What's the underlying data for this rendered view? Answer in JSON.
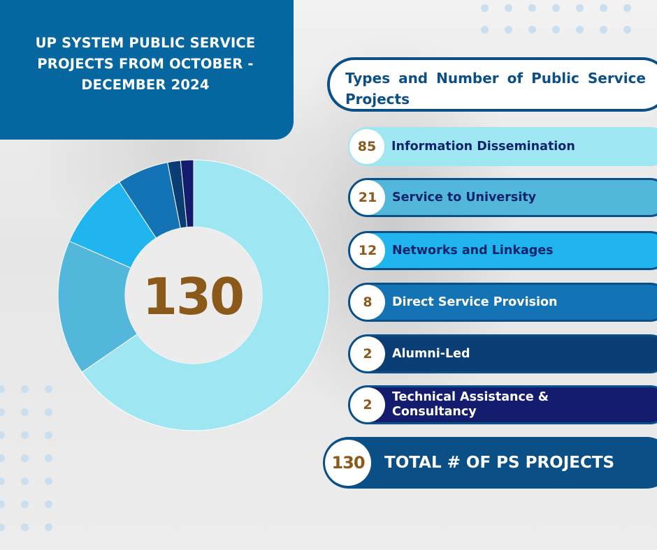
{
  "header": {
    "title": "UP SYSTEM PUBLIC SERVICE PROJECTS FROM OCTOBER - DECEMBER 2024"
  },
  "donut": {
    "center_value": "130"
  },
  "list": {
    "heading": "Types and Number of Public Service Projects",
    "items": [
      {
        "count": "85",
        "label": "Information Dissemination",
        "color": "#9ee6f2",
        "text_color": "#10246b"
      },
      {
        "count": "21",
        "label": "Service to University",
        "color": "#53b7dc",
        "text_color": "#10246b"
      },
      {
        "count": "12",
        "label": "Networks and Linkages",
        "color": "#20b5ee",
        "text_color": "#10246b"
      },
      {
        "count": "8",
        "label": "Direct Service Provision",
        "color": "#1373b4",
        "text_color": "#ffffff"
      },
      {
        "count": "2",
        "label": "Alumni-Led",
        "color": "#0a3e74",
        "text_color": "#ffffff"
      },
      {
        "count": "2",
        "label": "Technical Assistance & Consultancy",
        "color": "#141c6e",
        "text_color": "#ffffff"
      }
    ],
    "total_value": "130",
    "total_label": "TOTAL # OF PS PROJECTS"
  },
  "chart_data": {
    "type": "pie",
    "categories": [
      "Information Dissemination",
      "Service to University",
      "Networks and Linkages",
      "Direct Service Provision",
      "Alumni-Led",
      "Technical Assistance & Consultancy"
    ],
    "values": [
      85,
      21,
      12,
      8,
      2,
      2
    ],
    "colors": [
      "#9ee6f2",
      "#53b7dc",
      "#20b5ee",
      "#1373b4",
      "#0a3e74",
      "#141c6e"
    ],
    "hole": true,
    "title": "UP SYSTEM PUBLIC SERVICE PROJECTS FROM OCTOBER - DECEMBER 2024"
  }
}
